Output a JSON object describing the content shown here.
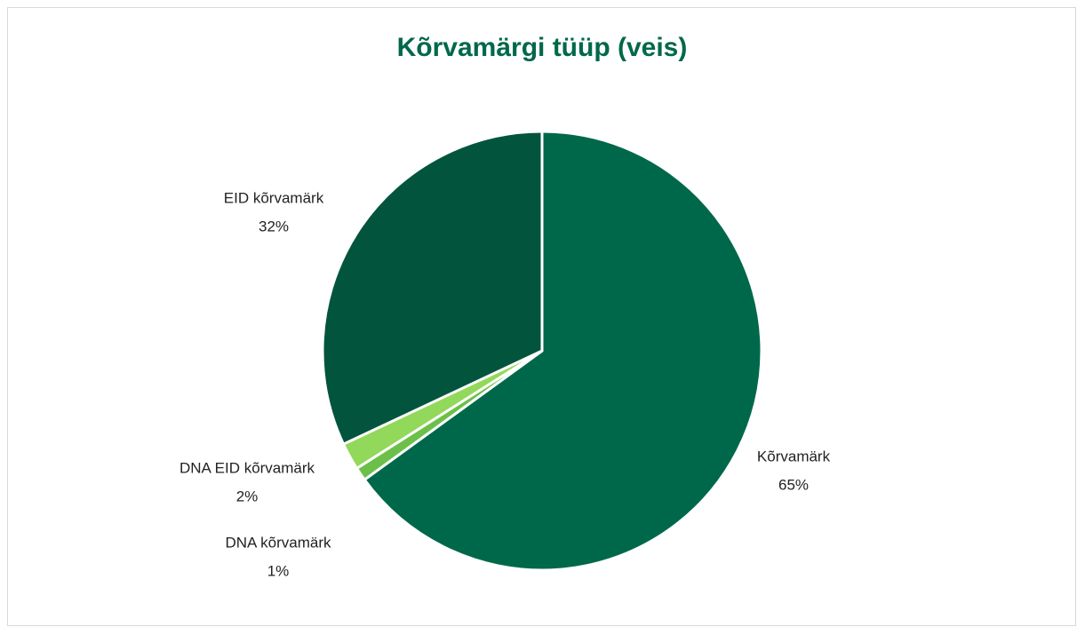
{
  "chart_data": {
    "type": "pie",
    "title": "Kõrvamärgi tüüp (veis)",
    "categories": [
      "Kõrvamärk",
      "DNA kõrvamärk",
      "DNA EID kõrvamärk",
      "EID kõrvamärk"
    ],
    "values": [
      65,
      1,
      2,
      32
    ],
    "value_labels": [
      "65%",
      "1%",
      "2%",
      "32%"
    ],
    "colors": [
      "#00684a",
      "#6cc04a",
      "#92d85a",
      "#02553c"
    ]
  }
}
